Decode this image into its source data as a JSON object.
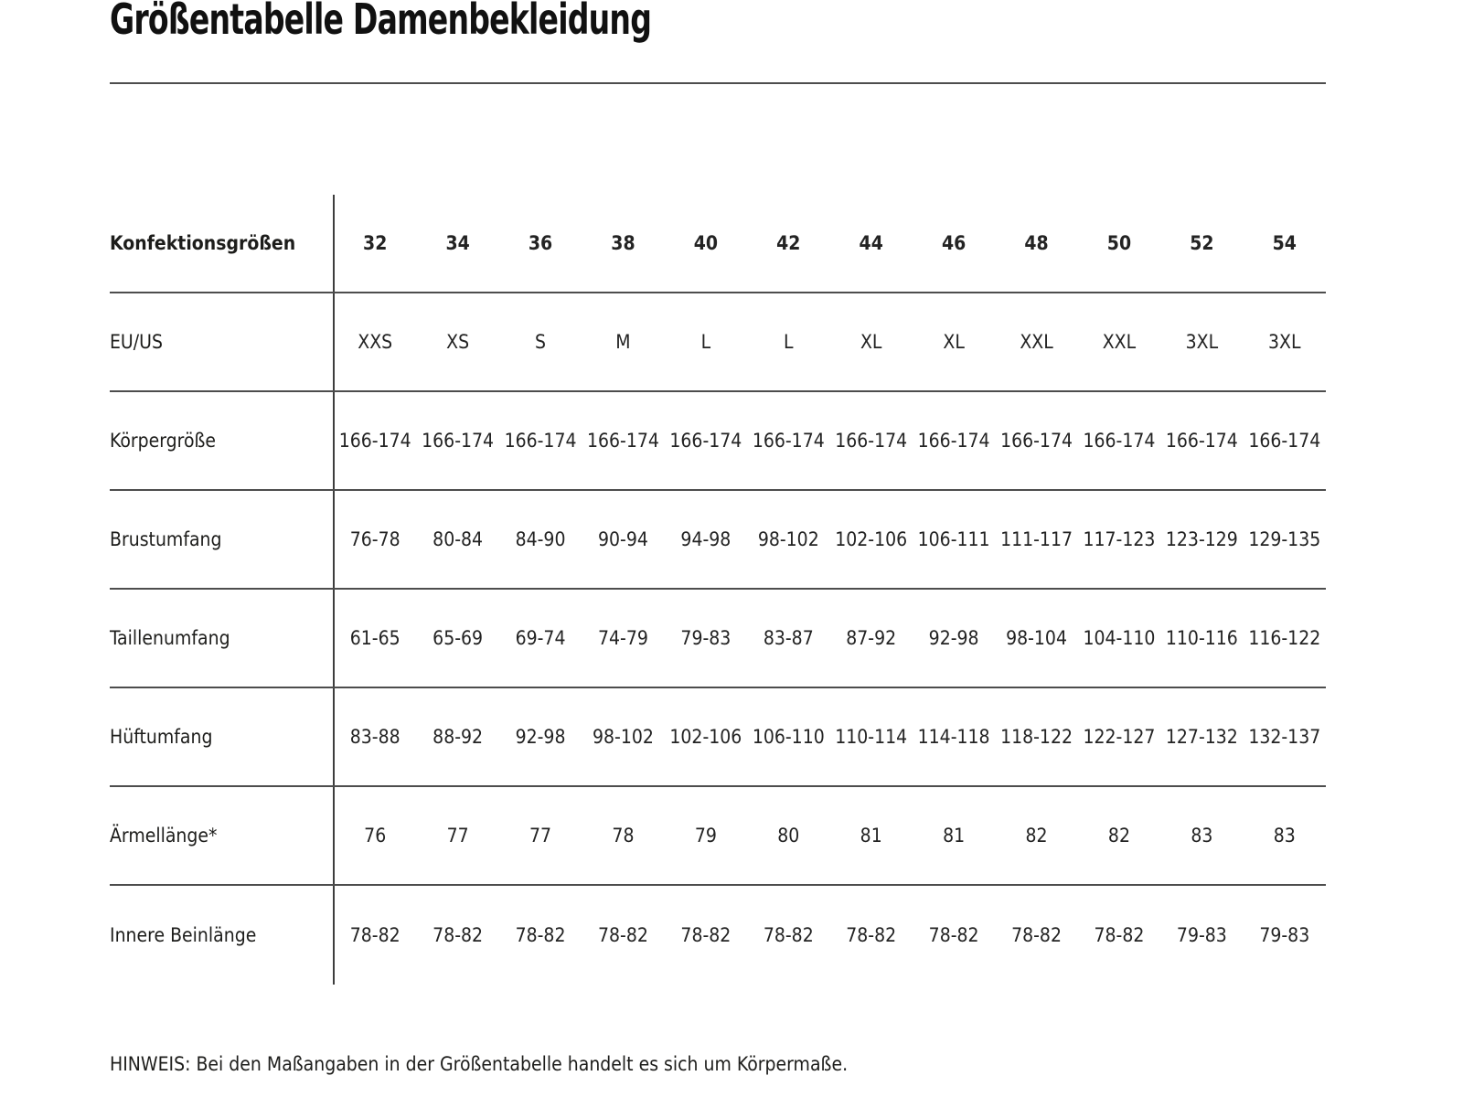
{
  "page": {
    "title": "Größentabelle Damenbekleidung",
    "note": "HINWEIS: Bei den Maßangaben in der Größentabelle handelt es sich um Körpermaße."
  },
  "colors": {
    "text": "#1d1d1b",
    "rule": "#4d4d4d",
    "background": "#ffffff"
  },
  "table": {
    "rows": [
      {
        "label": "Konfektionsgrößen",
        "values": [
          "32",
          "34",
          "36",
          "38",
          "40",
          "42",
          "44",
          "46",
          "48",
          "50",
          "52",
          "54"
        ]
      },
      {
        "label": "EU/US",
        "values": [
          "XXS",
          "XS",
          "S",
          "M",
          "L",
          "L",
          "XL",
          "XL",
          "XXL",
          "XXL",
          "3XL",
          "3XL"
        ]
      },
      {
        "label": "Körpergröße",
        "values": [
          "166-174",
          "166-174",
          "166-174",
          "166-174",
          "166-174",
          "166-174",
          "166-174",
          "166-174",
          "166-174",
          "166-174",
          "166-174",
          "166-174"
        ]
      },
      {
        "label": "Brustumfang",
        "values": [
          "76-78",
          "80-84",
          "84-90",
          "90-94",
          "94-98",
          "98-102",
          "102-106",
          "106-111",
          "111-117",
          "117-123",
          "123-129",
          "129-135"
        ]
      },
      {
        "label": "Taillenumfang",
        "values": [
          "61-65",
          "65-69",
          "69-74",
          "74-79",
          "79-83",
          "83-87",
          "87-92",
          "92-98",
          "98-104",
          "104-110",
          "110-116",
          "116-122"
        ]
      },
      {
        "label": "Hüftumfang",
        "values": [
          "83-88",
          "88-92",
          "92-98",
          "98-102",
          "102-106",
          "106-110",
          "110-114",
          "114-118",
          "118-122",
          "122-127",
          "127-132",
          "132-137"
        ]
      },
      {
        "label": "Ärmellänge*",
        "values": [
          "76",
          "77",
          "77",
          "78",
          "79",
          "80",
          "81",
          "81",
          "82",
          "82",
          "83",
          "83"
        ]
      },
      {
        "label": "Innere Beinlänge",
        "values": [
          "78-82",
          "78-82",
          "78-82",
          "78-82",
          "78-82",
          "78-82",
          "78-82",
          "78-82",
          "78-82",
          "78-82",
          "79-83",
          "79-83"
        ]
      }
    ]
  }
}
